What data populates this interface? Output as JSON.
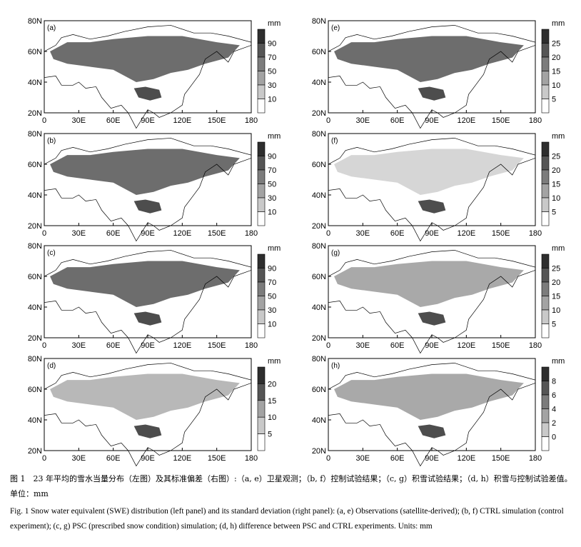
{
  "figure": {
    "lat_ticks": [
      "80N",
      "60N",
      "40N",
      "20N"
    ],
    "lon_ticks": [
      "0",
      "30E",
      "60E",
      "90E",
      "120E",
      "150E",
      "180"
    ],
    "unit": "mm",
    "panels": [
      {
        "id": "a",
        "label": "(a)",
        "colorbar": [
          "90",
          "70",
          "50",
          "30",
          "10"
        ],
        "fill": "#3c3c3c"
      },
      {
        "id": "e",
        "label": "(e)",
        "colorbar": [
          "25",
          "20",
          "15",
          "10",
          "5"
        ],
        "fill": "#3c3c3c"
      },
      {
        "id": "b",
        "label": "(b)",
        "colorbar": [
          "90",
          "70",
          "50",
          "30",
          "10"
        ],
        "fill": "#3c3c3c"
      },
      {
        "id": "f",
        "label": "(f)",
        "colorbar": [
          "25",
          "20",
          "15",
          "10",
          "5"
        ],
        "fill": "#c8c8c8"
      },
      {
        "id": "c",
        "label": "(c)",
        "colorbar": [
          "90",
          "70",
          "50",
          "30",
          "10"
        ],
        "fill": "#3c3c3c"
      },
      {
        "id": "g",
        "label": "(g)",
        "colorbar": [
          "25",
          "20",
          "15",
          "10",
          "5"
        ],
        "fill": "#8c8c8c"
      },
      {
        "id": "d",
        "label": "(d)",
        "colorbar": [
          "20",
          "15",
          "10",
          "5"
        ],
        "fill": "#a0a0a0"
      },
      {
        "id": "h",
        "label": "(h)",
        "colorbar": [
          "8",
          "6",
          "4",
          "2",
          "0"
        ],
        "fill": "#8c8c8c"
      }
    ]
  },
  "caption": {
    "zh": "图 1　23 年平均的雪水当量分布（左图）及其标准偏差（右图）:（a, e）卫星观测；（b, f）控制试验结果；（c, g）积雪试验结果；（d, h）积雪与控制试验差值。单位：mm",
    "en": "Fig. 1   Snow water equivalent (SWE) distribution (left panel) and its standard deviation (right panel): (a, e) Observations (satellite-derived); (b, f) CTRL simulation (control experiment); (c, g) PSC (prescribed snow condition) simulation; (d, h) difference between PSC and CTRL experiments. Units: mm"
  }
}
